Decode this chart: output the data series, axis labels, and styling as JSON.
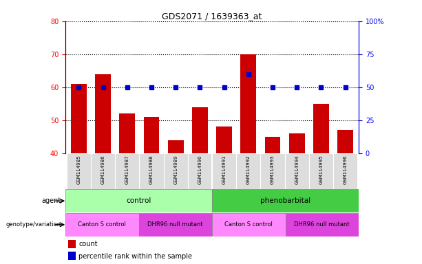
{
  "title": "GDS2071 / 1639363_at",
  "samples": [
    "GSM114985",
    "GSM114986",
    "GSM114987",
    "GSM114988",
    "GSM114989",
    "GSM114990",
    "GSM114991",
    "GSM114992",
    "GSM114993",
    "GSM114994",
    "GSM114995",
    "GSM114996"
  ],
  "counts": [
    61,
    64,
    52,
    51,
    44,
    54,
    48,
    70,
    45,
    46,
    55,
    47
  ],
  "percentile": [
    50,
    50,
    50,
    50,
    50,
    50,
    50,
    60,
    50,
    50,
    50,
    50
  ],
  "ylim_left": [
    40,
    80
  ],
  "ylim_right": [
    0,
    100
  ],
  "yticks_left": [
    40,
    50,
    60,
    70,
    80
  ],
  "yticks_right": [
    0,
    25,
    50,
    75,
    100
  ],
  "ytick_labels_right": [
    "0",
    "25",
    "50",
    "75",
    "100%"
  ],
  "bar_color": "#cc0000",
  "dot_color": "#0000cc",
  "agent_control_color": "#aaffaa",
  "agent_pheno_color": "#44cc44",
  "geno_canton_color": "#ff88ff",
  "geno_dhr_color": "#dd44dd",
  "sample_bg_color": "#dddddd",
  "agent_row_label": "agent",
  "geno_row_label": "genotype/variation",
  "control_label": "control",
  "phenobarbital_label": "phenobarbital",
  "canton_label": "Canton S control",
  "dhr_label": "DHR96 null mutant",
  "legend_count": "count",
  "legend_percentile": "percentile rank within the sample",
  "n_control": 6,
  "n_pheno": 6,
  "n_canton_control": 3,
  "n_dhr_control": 3,
  "n_canton_pheno": 3,
  "n_dhr_pheno": 3
}
